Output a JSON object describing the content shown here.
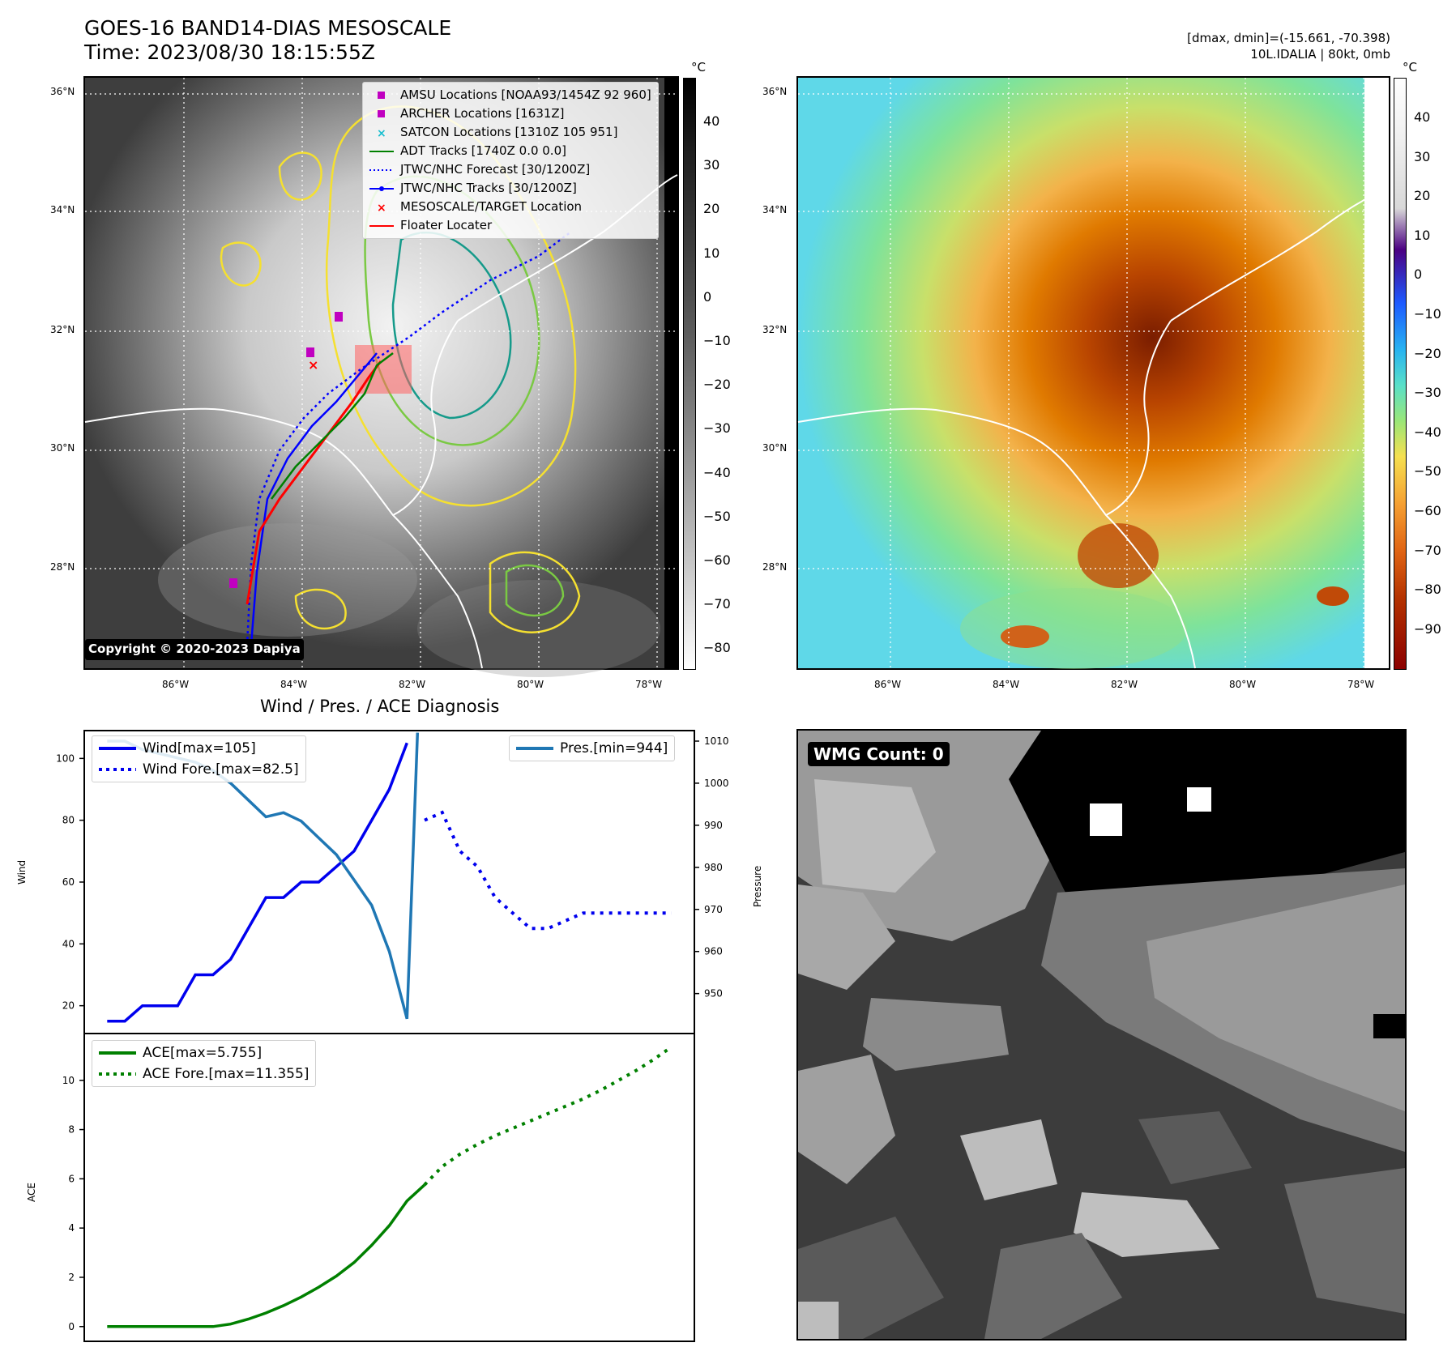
{
  "header": {
    "title_line1": "GOES-16 BAND14-DIAS MESOSCALE",
    "title_line2": "Time: 2023/08/30 18:15:55Z",
    "stats_line1": "[dmax, dmin]=(-15.661, -70.398)",
    "stats_line2": "10L.IDALIA | 80kt, 0mb"
  },
  "map_left": {
    "lat_labels": [
      "36°N",
      "34°N",
      "32°N",
      "30°N",
      "28°N"
    ],
    "lon_labels": [
      "86°W",
      "84°W",
      "82°W",
      "80°W",
      "78°W"
    ],
    "copyright": "Copyright © 2020-2023 Dapiya",
    "colorbar_unit": "°C",
    "colorbar_ticks": [
      "40",
      "30",
      "20",
      "10",
      "0",
      "−10",
      "−20",
      "−30",
      "−40",
      "−50",
      "−60",
      "−70",
      "−80"
    ],
    "legend": [
      {
        "label": "AMSU Locations [NOAA93/1454Z 92 960]",
        "color": "#c000c0",
        "marker": "square"
      },
      {
        "label": "ARCHER Locations [1631Z]",
        "color": "#c000c0",
        "marker": "square"
      },
      {
        "label": "SATCON Locations [1310Z 105 951]",
        "color": "#17becf",
        "marker": "x"
      },
      {
        "label": "ADT Tracks [1740Z 0.0 0.0]",
        "color": "#008000",
        "marker": "line"
      },
      {
        "label": "JTWC/NHC Forecast [30/1200Z]",
        "color": "#0000ff",
        "marker": "dotted"
      },
      {
        "label": "JTWC/NHC Tracks [30/1200Z]",
        "color": "#0000ff",
        "marker": "linedot"
      },
      {
        "label": "MESOSCALE/TARGET Location",
        "color": "#ff0000",
        "marker": "x"
      },
      {
        "label": "Floater Locater",
        "color": "#ff0000",
        "marker": "line"
      }
    ]
  },
  "map_right": {
    "lat_labels": [
      "36°N",
      "34°N",
      "32°N",
      "30°N",
      "28°N"
    ],
    "lon_labels": [
      "86°W",
      "84°W",
      "82°W",
      "80°W",
      "78°W"
    ],
    "colorbar_unit": "°C",
    "colorbar_ticks": [
      "40",
      "30",
      "20",
      "10",
      "0",
      "−10",
      "−20",
      "−30",
      "−40",
      "−50",
      "−60",
      "−70",
      "−80",
      "−90"
    ]
  },
  "wmg": {
    "badge": "WMG Count: 0"
  },
  "diag": {
    "title": "Wind / Pres. / ACE Diagnosis",
    "wind_ylabel": "Wind",
    "pres_ylabel": "Pressure",
    "ace_ylabel": "ACE",
    "wind_ticks": [
      "100",
      "80",
      "60",
      "40",
      "20"
    ],
    "pres_ticks": [
      "1010",
      "1000",
      "990",
      "980",
      "970",
      "960",
      "950"
    ],
    "ace_ticks": [
      "10",
      "8",
      "6",
      "4",
      "2",
      "0"
    ],
    "legend_wind": "Wind[max=105]",
    "legend_wind_fore": "Wind Fore.[max=82.5]",
    "legend_pres": "Pres.[min=944]",
    "legend_ace": "ACE[max=5.755]",
    "legend_ace_fore": "ACE Fore.[max=11.355]",
    "colors": {
      "wind": "#0000ee",
      "pres": "#1f77b4",
      "ace": "#008000"
    }
  },
  "chart_data": [
    {
      "type": "line",
      "title": "Wind / Pres. / ACE Diagnosis",
      "ylabel": "Wind",
      "ylim": [
        11,
        109
      ],
      "y2label": "Pressure",
      "y2lim": [
        940.5,
        1012.5
      ],
      "series": [
        {
          "name": "Wind[max=105]",
          "axis": "left",
          "style": "solid",
          "x": [
            0,
            1,
            2,
            3,
            4,
            5,
            6,
            7,
            8,
            9,
            10,
            11,
            12,
            13,
            14,
            15,
            16,
            17
          ],
          "values": [
            15,
            15,
            20,
            20,
            20,
            30,
            30,
            35,
            45,
            55,
            55,
            60,
            60,
            65,
            70,
            80,
            90,
            105
          ]
        },
        {
          "name": "Wind Fore.[max=82.5]",
          "axis": "left",
          "style": "dotted",
          "x": [
            18,
            19,
            20,
            21,
            22,
            23,
            24,
            25,
            26,
            27,
            28,
            29,
            30,
            31,
            32
          ],
          "values": [
            80,
            82.5,
            70,
            65,
            55,
            50,
            45,
            45,
            47.5,
            50,
            50,
            50,
            50,
            50,
            50
          ]
        },
        {
          "name": "Pres.[min=944]",
          "axis": "right",
          "style": "solid",
          "x": [
            0,
            1,
            2,
            3,
            4,
            5,
            6,
            7,
            8,
            9,
            10,
            11,
            12,
            13,
            14,
            15,
            16,
            17,
            17.6
          ],
          "values": [
            1010,
            1010,
            1008,
            1007,
            1006,
            1005,
            1003,
            1000,
            996,
            992,
            993,
            991,
            987,
            983,
            977,
            971,
            960,
            944,
            1012
          ]
        }
      ]
    },
    {
      "type": "line",
      "ylabel": "ACE",
      "ylim": [
        -0.6,
        11.9
      ],
      "series": [
        {
          "name": "ACE[max=5.755]",
          "style": "solid",
          "x": [
            0,
            1,
            2,
            3,
            4,
            5,
            6,
            7,
            8,
            9,
            10,
            11,
            12,
            13,
            14,
            15,
            16,
            17,
            18
          ],
          "values": [
            0,
            0,
            0,
            0,
            0,
            0,
            0,
            0.1,
            0.3,
            0.55,
            0.85,
            1.2,
            1.6,
            2.05,
            2.6,
            3.3,
            4.1,
            5.1,
            5.755
          ]
        },
        {
          "name": "ACE Fore.[max=11.355]",
          "style": "dotted",
          "x": [
            18,
            19,
            20,
            21,
            22,
            23,
            24,
            25,
            26,
            27,
            28,
            29,
            30,
            31,
            32
          ],
          "values": [
            5.755,
            6.5,
            7,
            7.4,
            7.75,
            8.05,
            8.35,
            8.65,
            8.95,
            9.25,
            9.6,
            10.0,
            10.4,
            10.85,
            11.355
          ]
        }
      ]
    }
  ]
}
